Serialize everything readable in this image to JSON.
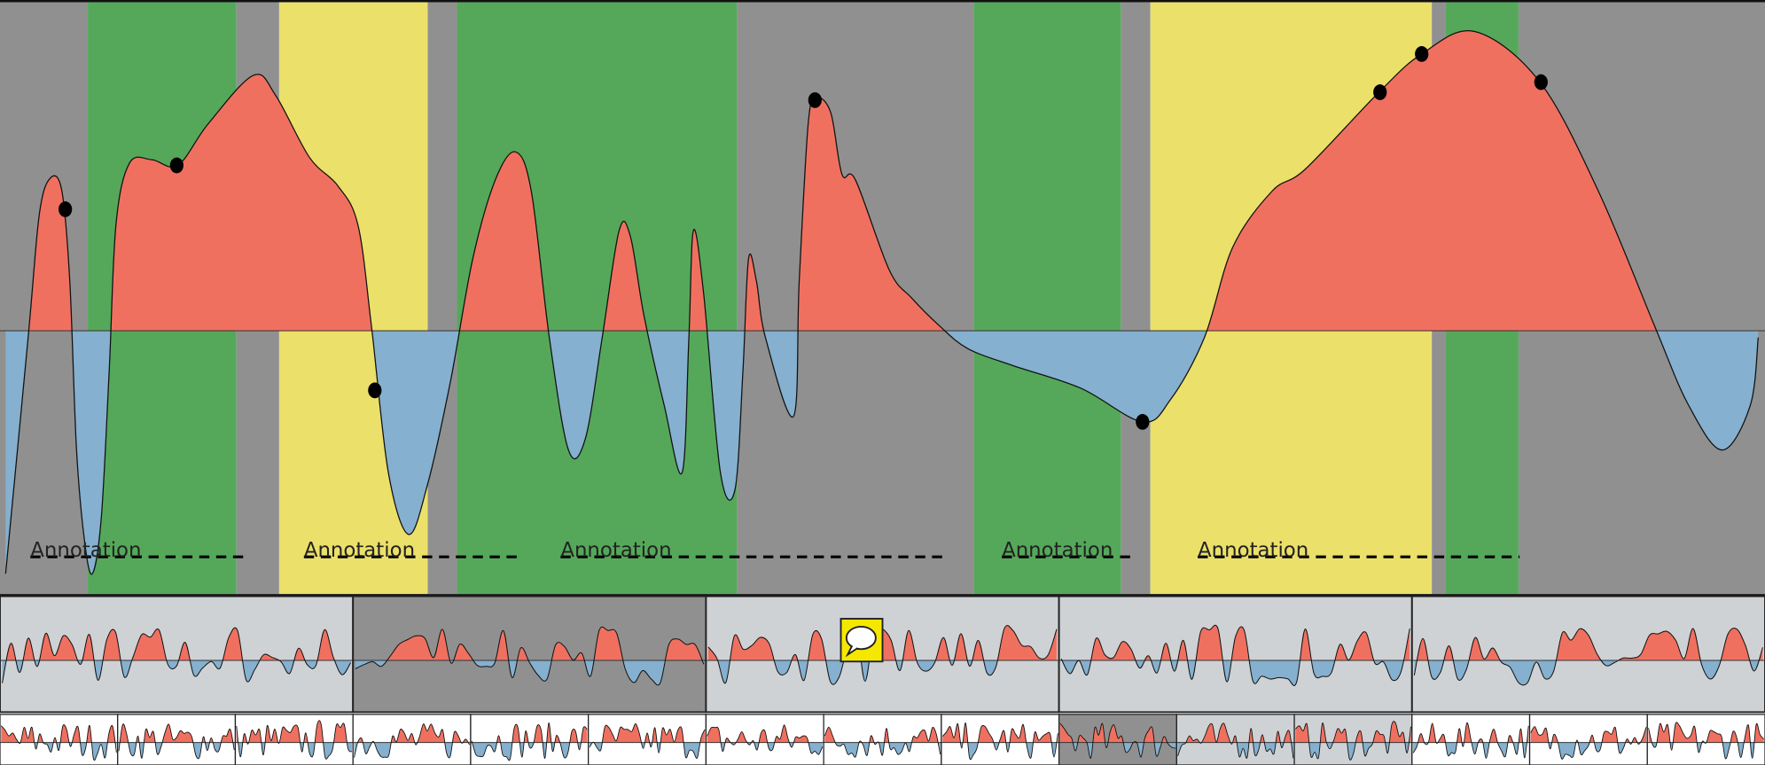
{
  "annotations": [
    {
      "label": "Annotation"
    },
    {
      "label": "Annotation"
    },
    {
      "label": "Annotation"
    },
    {
      "label": "Annotation"
    },
    {
      "label": "Annotation"
    }
  ]
}
